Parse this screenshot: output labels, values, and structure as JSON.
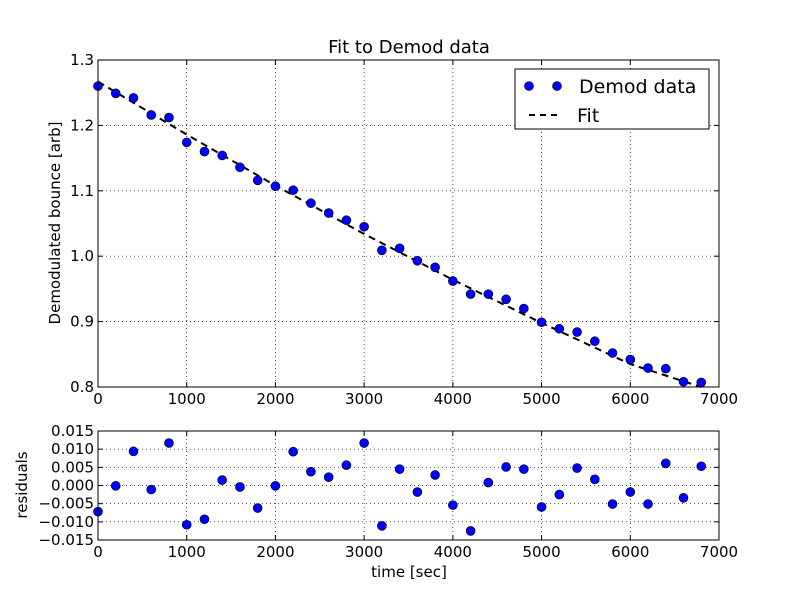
{
  "chart_data": [
    {
      "type": "scatter",
      "title": "Fit to Demod data",
      "xlabel": "",
      "ylabel": "Demodulated bounce [arb]",
      "xlim": [
        0,
        7000
      ],
      "ylim": [
        0.8,
        1.3
      ],
      "xticks": [
        0,
        1000,
        2000,
        3000,
        4000,
        5000,
        6000,
        7000
      ],
      "yticks": [
        0.8,
        0.9,
        1.0,
        1.1,
        1.2,
        1.3
      ],
      "xtick_labels": [
        "0",
        "1000",
        "2000",
        "3000",
        "4000",
        "5000",
        "6000",
        "7000"
      ],
      "ytick_labels": [
        "0.8",
        "0.9",
        "1.0",
        "1.1",
        "1.2",
        "1.3"
      ],
      "grid": true,
      "legend_position": "top-right",
      "series": [
        {
          "name": "Demod data",
          "style": "markers",
          "color": "#0000ff",
          "x": [
            0,
            200,
            400,
            600,
            800,
            1000,
            1200,
            1400,
            1600,
            1800,
            2000,
            2200,
            2400,
            2600,
            2800,
            3000,
            3200,
            3400,
            3600,
            3800,
            4000,
            4200,
            4400,
            4600,
            4800,
            5000,
            5200,
            5400,
            5600,
            5800,
            6000,
            6200,
            6400,
            6600,
            6800
          ],
          "y": [
            1.26,
            1.249,
            1.242,
            1.216,
            1.212,
            1.174,
            1.16,
            1.154,
            1.136,
            1.116,
            1.107,
            1.101,
            1.081,
            1.066,
            1.055,
            1.045,
            1.009,
            1.012,
            0.993,
            0.983,
            0.962,
            0.942,
            0.942,
            0.934,
            0.92,
            0.899,
            0.889,
            0.884,
            0.87,
            0.852,
            0.842,
            0.829,
            0.828,
            0.808,
            0.807
          ]
        },
        {
          "name": "Fit",
          "style": "dashed",
          "color": "#000000",
          "x": [
            0,
            1000,
            2000,
            3000,
            4000,
            5000,
            6000,
            6800
          ],
          "y": [
            1.267,
            1.186,
            1.108,
            1.034,
            0.964,
            0.898,
            0.835,
            0.8
          ]
        }
      ]
    },
    {
      "type": "scatter",
      "title": "",
      "xlabel": "time [sec]",
      "ylabel": "residuals",
      "xlim": [
        0,
        7000
      ],
      "ylim": [
        -0.015,
        0.015
      ],
      "xticks": [
        0,
        1000,
        2000,
        3000,
        4000,
        5000,
        6000,
        7000
      ],
      "yticks": [
        -0.015,
        -0.01,
        -0.005,
        0.0,
        0.005,
        0.01,
        0.015
      ],
      "xtick_labels": [
        "0",
        "1000",
        "2000",
        "3000",
        "4000",
        "5000",
        "6000",
        "7000"
      ],
      "ytick_labels": [
        "−0.015",
        "−0.010",
        "−0.005",
        "0.000",
        "0.005",
        "0.010",
        "0.015"
      ],
      "grid": true,
      "series": [
        {
          "style": "markers",
          "color": "#0000ff",
          "x": [
            0,
            200,
            400,
            600,
            800,
            1000,
            1200,
            1400,
            1600,
            1800,
            2000,
            2200,
            2400,
            2600,
            2800,
            3000,
            3200,
            3400,
            3600,
            3800,
            4000,
            4200,
            4400,
            4600,
            4800,
            5000,
            5200,
            5400,
            5600,
            5800,
            6000,
            6200,
            6400,
            6600,
            6800
          ],
          "y": [
            -0.0072,
            -0.0001,
            0.0094,
            -0.0011,
            0.0117,
            -0.0108,
            -0.0093,
            0.0015,
            -0.0004,
            -0.0062,
            -0.0001,
            0.0093,
            0.0038,
            0.0023,
            0.0056,
            0.0117,
            -0.0111,
            0.0045,
            -0.0018,
            0.0029,
            -0.0054,
            -0.0125,
            0.0008,
            0.0051,
            0.0045,
            -0.0059,
            -0.0025,
            0.0048,
            0.0017,
            -0.0051,
            -0.0018,
            -0.0051,
            0.0061,
            -0.0034,
            0.0053
          ]
        }
      ]
    }
  ]
}
